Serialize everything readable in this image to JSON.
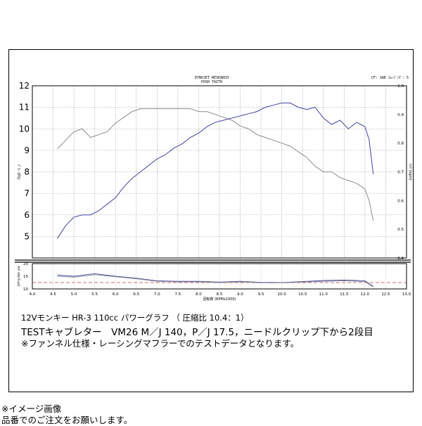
{
  "chart_data": {
    "type": "line",
    "header_left": [
      "DYNOJET RESEARCH",
      "POSH TAITH"
    ],
    "header_right": "CF: SAE  ｽﾑｰｼﾞﾝｸﾞ: 5",
    "xlabel": "回転数 (RPMx1000)",
    "ylabel_left": "ﾊﾟﾜｰ (PS)",
    "ylabel_right": "ﾄﾙｸ (kgm)",
    "ylabel_sub": "A/F (Air/Fuel)",
    "xlim": [
      4.0,
      13.0
    ],
    "ylim_left": [
      4.0,
      12.0
    ],
    "ylim_right": [
      0.4,
      1.0
    ],
    "x_ticks": [
      "4.0",
      "4.5",
      "5.0",
      "5.5",
      "6.0",
      "6.5",
      "7.0",
      "7.5",
      "8.0",
      "8.5",
      "9.0",
      "9.5",
      "10.0",
      "10.5",
      "11.0",
      "11.5",
      "12.0",
      "12.5",
      "13.0"
    ],
    "y_ticks_left": [
      "12",
      "11",
      "10",
      "9",
      "8",
      "7",
      "6",
      "5"
    ],
    "y_ticks_right": [
      "1.0",
      "0.9",
      "0.8",
      "0.7",
      "0.6",
      "0.5",
      "0.4"
    ],
    "sub_ylim": [
      10,
      20
    ],
    "sub_ticks": [
      "20",
      "15",
      "10"
    ],
    "sub_reference": 12.5,
    "grid": true,
    "series": [
      {
        "name": "",
        "axis": "left",
        "color": "#3a44a8",
        "x": [
          4.6,
          4.8,
          5.0,
          5.2,
          5.4,
          5.6,
          5.8,
          6.0,
          6.2,
          6.4,
          6.6,
          6.8,
          7.0,
          7.2,
          7.4,
          7.6,
          7.8,
          8.0,
          8.2,
          8.4,
          8.6,
          8.8,
          9.0,
          9.2,
          9.4,
          9.6,
          9.8,
          10.0,
          10.2,
          10.4,
          10.6,
          10.8,
          11.0,
          11.2,
          11.4,
          11.6,
          11.8,
          12.0,
          12.1,
          12.2
        ],
        "values": [
          4.9,
          5.5,
          5.9,
          6.0,
          6.0,
          6.2,
          6.5,
          6.8,
          7.3,
          7.7,
          8.0,
          8.3,
          8.6,
          8.8,
          9.1,
          9.3,
          9.6,
          9.8,
          10.1,
          10.3,
          10.4,
          10.5,
          10.6,
          10.7,
          10.8,
          11.0,
          11.1,
          11.2,
          11.2,
          11.0,
          10.9,
          11.0,
          10.5,
          10.2,
          10.4,
          10.0,
          10.3,
          10.1,
          9.5,
          7.9
        ]
      },
      {
        "name": "",
        "axis": "right",
        "color": "#8c8c8c",
        "x": [
          4.6,
          4.8,
          5.0,
          5.2,
          5.4,
          5.6,
          5.8,
          6.0,
          6.2,
          6.4,
          6.6,
          6.8,
          7.0,
          7.2,
          7.4,
          7.6,
          7.8,
          8.0,
          8.2,
          8.4,
          8.6,
          8.8,
          9.0,
          9.2,
          9.4,
          9.6,
          9.8,
          10.0,
          10.2,
          10.4,
          10.6,
          10.8,
          11.0,
          11.2,
          11.4,
          11.6,
          11.8,
          12.0,
          12.1,
          12.2
        ],
        "values": [
          0.78,
          0.81,
          0.84,
          0.85,
          0.82,
          0.83,
          0.84,
          0.87,
          0.89,
          0.91,
          0.92,
          0.92,
          0.92,
          0.92,
          0.92,
          0.92,
          0.92,
          0.91,
          0.91,
          0.9,
          0.89,
          0.88,
          0.86,
          0.85,
          0.83,
          0.82,
          0.81,
          0.8,
          0.79,
          0.77,
          0.75,
          0.72,
          0.7,
          0.7,
          0.68,
          0.67,
          0.66,
          0.64,
          0.6,
          0.53
        ]
      }
    ],
    "sub_series": [
      {
        "name": "",
        "color": "#3a44a8",
        "x": [
          4.6,
          5.0,
          5.5,
          6.0,
          6.5,
          7.0,
          7.5,
          8.0,
          8.5,
          9.0,
          9.5,
          10.0,
          10.5,
          11.0,
          11.5,
          12.0,
          12.2
        ],
        "values": [
          15.5,
          15.0,
          16.0,
          15.0,
          14.2,
          13.2,
          13.0,
          13.0,
          12.7,
          13.0,
          12.6,
          12.5,
          12.9,
          13.3,
          13.5,
          13.2,
          11.0
        ]
      },
      {
        "name": "",
        "color": "#8c8c8c",
        "x": [
          4.6,
          5.0,
          5.5,
          6.0,
          6.5,
          7.0,
          7.5,
          8.0,
          8.5,
          9.0,
          9.5,
          10.0,
          10.5,
          11.0,
          11.5,
          12.0,
          12.2
        ],
        "values": [
          15.0,
          14.6,
          15.6,
          14.8,
          14.0,
          13.0,
          12.8,
          12.8,
          12.5,
          12.8,
          12.4,
          12.4,
          12.7,
          13.0,
          13.2,
          12.9,
          10.8
        ]
      }
    ]
  },
  "caption": {
    "line1": "12Vモンキー HR-3 110cc パワーグラフ （ 圧縮比  10.4：1）",
    "line2": "TESTキャブレター　VM26  M／J 140，P／J 17.5，ニードルクリップ下から2段目",
    "line3": "※ファンネル仕様・レーシングマフラーでのテストデータとなります。"
  },
  "footer": {
    "line1": "※イメージ画像",
    "line2": "品番でのご注文をお願いします。"
  }
}
